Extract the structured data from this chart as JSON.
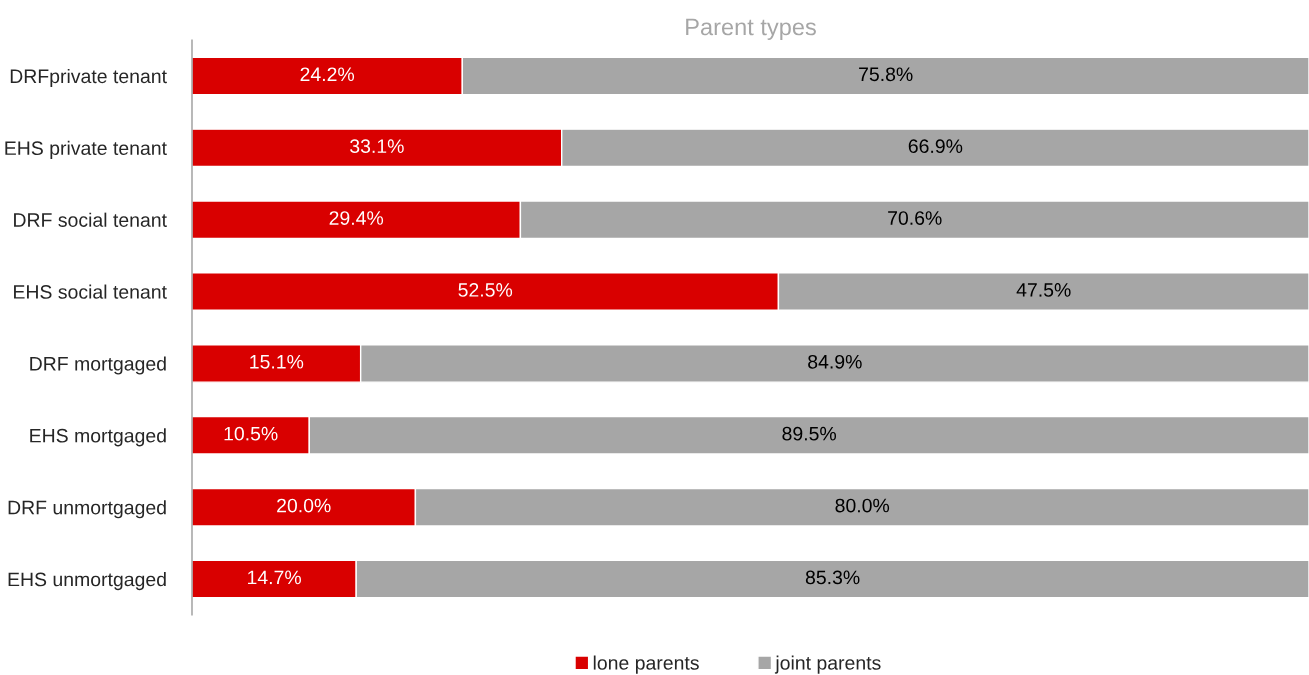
{
  "chart_data": {
    "type": "bar",
    "orientation": "horizontal",
    "stacked": true,
    "title": "Parent types",
    "categories": [
      "DRFprivate tenant",
      "EHS private tenant",
      "DRF social tenant",
      "EHS social tenant",
      "DRF mortgaged",
      "EHS mortgaged",
      "DRF unmortgaged",
      "EHS unmortgaged"
    ],
    "series": [
      {
        "name": "lone parents",
        "color": "#d90000",
        "values": [
          24.2,
          33.1,
          29.4,
          52.5,
          15.1,
          10.5,
          20.0,
          14.7
        ],
        "value_labels": [
          "24.2%",
          "33.1%",
          "29.4%",
          "52.5%",
          "15.1%",
          "10.5%",
          "20.0%",
          "14.7%"
        ]
      },
      {
        "name": "joint parents",
        "color": "#a6a6a6",
        "values": [
          75.8,
          66.9,
          70.6,
          47.5,
          84.9,
          89.5,
          80.0,
          85.3
        ],
        "value_labels": [
          "75.8%",
          "66.9%",
          "70.6%",
          "47.5%",
          "84.9%",
          "89.5%",
          "80.0%",
          "85.3%"
        ]
      }
    ],
    "xlim": [
      0,
      100
    ],
    "legend": "bottom",
    "tick_labels": "y"
  }
}
